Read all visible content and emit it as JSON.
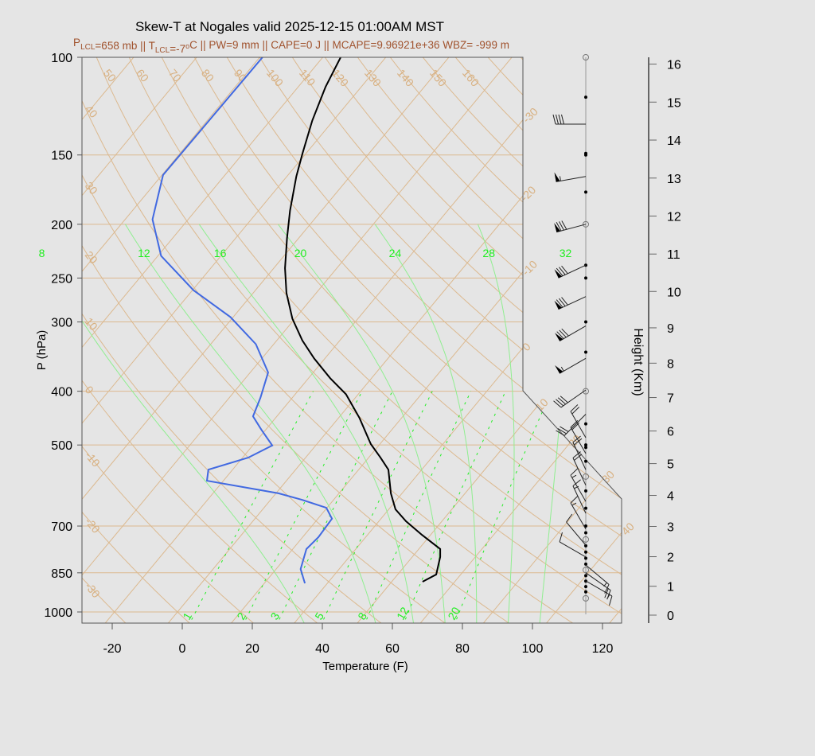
{
  "chart_data": {
    "type": "skew-t",
    "title": "Skew-T at Nogales valid 2025-12-15 01:00AM MST",
    "subtitle": [
      {
        "t": "P"
      },
      {
        "sub": "LCL"
      },
      {
        "t": "=658 mb || T"
      },
      {
        "sub": "LCL"
      },
      {
        "t": "=-7"
      },
      {
        "sup": "o"
      },
      {
        "t": "C || PW=9 mm || CAPE=0 J || MCAPE=9.96921e+36 WBZ= -999 m"
      }
    ],
    "xlabel": "Temperature (F)",
    "ylabel": "P (hPa)",
    "y2label": "Height (Km)",
    "xlim": [
      -28.6,
      125.5
    ],
    "ylim": [
      1047,
      100
    ],
    "y_scale": "log",
    "xticks": [
      -20,
      0,
      20,
      40,
      60,
      80,
      100,
      120
    ],
    "yticks": [
      100,
      150,
      200,
      250,
      300,
      400,
      500,
      700,
      850,
      1000
    ],
    "y2ticks": [
      0,
      1,
      2,
      3,
      4,
      5,
      6,
      7,
      8,
      9,
      10,
      11,
      12,
      13,
      14,
      15,
      16
    ],
    "isotherm_labels_c": [
      -30,
      -20,
      -10,
      0,
      10,
      20,
      30,
      40
    ],
    "dry_adiabat_labels_c": [
      -30,
      -20,
      -10,
      0,
      10,
      20,
      30,
      40,
      50,
      60,
      70,
      80,
      90,
      100,
      110,
      120,
      130,
      140,
      150,
      160
    ],
    "mixing_ratio_labels_gkg": [
      1,
      2,
      3,
      5,
      8,
      12,
      20
    ],
    "moist_adiabat_labels": [
      8,
      12,
      16,
      20,
      24,
      28,
      32
    ],
    "temperature_profile": {
      "name": "Temperature",
      "p_hpa": [
        882,
        856,
        796,
        770,
        726,
        686,
        653,
        611,
        554,
        527,
        498,
        447,
        405,
        379,
        349,
        324,
        296,
        266,
        240,
        212,
        189,
        164,
        149,
        130,
        113,
        100
      ],
      "t_f": [
        58.8,
        61.0,
        58.0,
        56.1,
        47.5,
        39.7,
        33.9,
        28.8,
        22.5,
        17.4,
        11.4,
        2.0,
        -7.5,
        -15.8,
        -25.1,
        -32.7,
        -40.7,
        -48.5,
        -54.8,
        -61.3,
        -67.0,
        -73.3,
        -77.0,
        -82.0,
        -86.2,
        -88.9
      ]
    },
    "dewpoint_profile": {
      "name": "Dewpoint",
      "p_hpa": [
        888,
        837,
        770,
        733,
        679,
        649,
        628,
        611,
        580,
        554,
        527,
        501,
        469,
        444,
        411,
        370,
        329,
        294,
        263,
        228,
        196,
        163,
        100
      ],
      "td_f": [
        25.6,
        21.0,
        17.9,
        18.5,
        18.0,
        13.8,
        5.1,
        -3.3,
        -26.7,
        -28.9,
        -20.4,
        -16.4,
        -23.3,
        -28.8,
        -31.1,
        -34.9,
        -45.1,
        -58.8,
        -75.7,
        -93.1,
        -104.2,
        -111.7,
        -111.2
      ]
    },
    "winds": {
      "p_hpa": [
        132,
        164,
        200,
        237,
        270,
        305,
        349,
        398,
        440,
        485,
        518,
        554,
        591,
        632,
        664,
        709,
        758,
        796,
        823,
        850,
        879
      ],
      "dir_deg": [
        270,
        260,
        255,
        245,
        245,
        240,
        240,
        235,
        225,
        330,
        330,
        335,
        335,
        330,
        335,
        330,
        320,
        300,
        130,
        125,
        120
      ],
      "speed_kt": [
        40,
        55,
        80,
        80,
        80,
        80,
        55,
        40,
        30,
        20,
        20,
        20,
        20,
        15,
        15,
        15,
        10,
        10,
        15,
        20,
        15
      ]
    },
    "observation_levels_hpa": [
      100,
      118,
      149,
      150,
      175,
      200,
      237,
      250,
      300,
      340,
      400,
      458,
      500,
      505,
      535,
      570,
      605,
      650,
      700,
      720,
      740,
      760,
      780,
      800,
      820,
      840,
      860,
      880,
      900,
      920,
      945
    ],
    "colors": {
      "background": "#e5e5e5",
      "temperature": "#000000",
      "dewpoint": "#4169e1",
      "isotherm_adiabat": "#dcb98f",
      "moist_adiabat": "#90ee90",
      "mixing_ratio": "#22ee22",
      "subtitle": "#a0522d"
    }
  }
}
